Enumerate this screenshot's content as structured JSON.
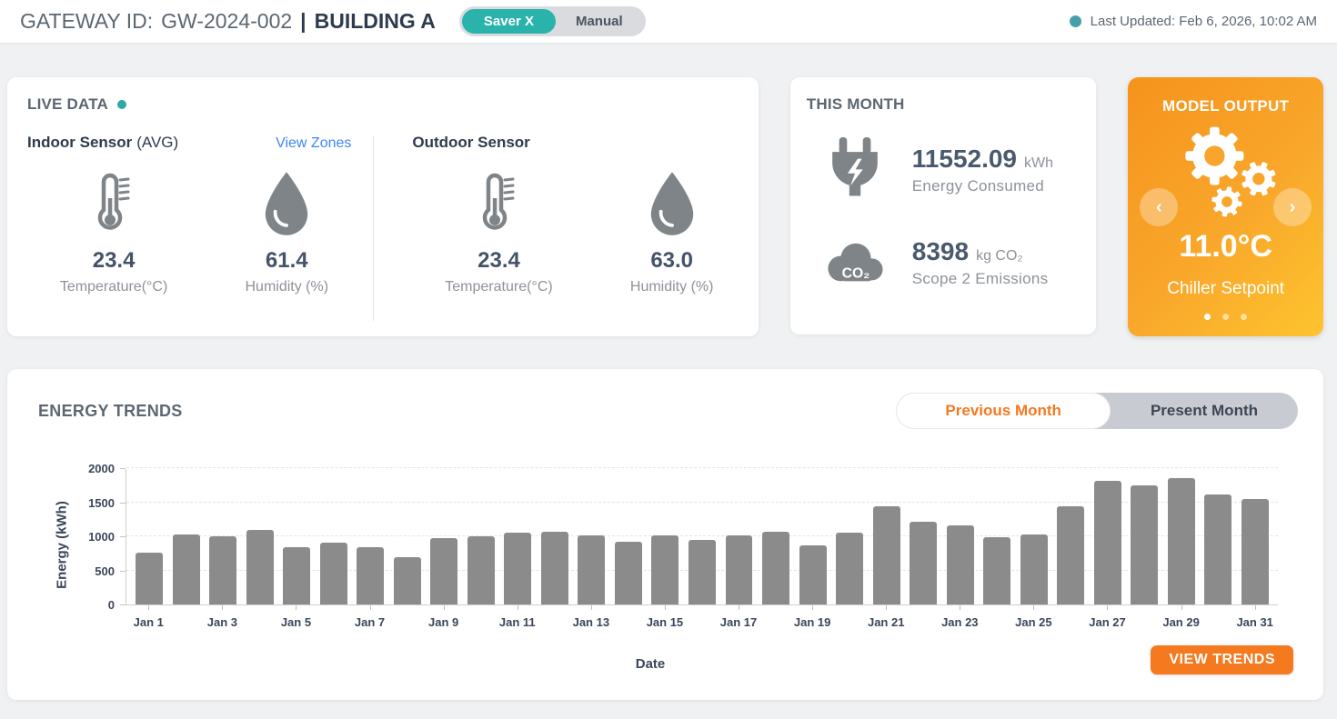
{
  "header": {
    "title_prefix": "GATEWAY ID:",
    "gateway_id": "GW-2024-002",
    "separator": "|",
    "building": "BUILDING A",
    "mode_toggle": {
      "active": "Saver X",
      "inactive": "Manual"
    },
    "last_updated": "Last Updated: Feb 6, 2026, 10:02 AM"
  },
  "live_data": {
    "title": "LIVE DATA",
    "indoor": {
      "title": "Indoor Sensor",
      "subtitle": "(AVG)",
      "link": "View Zones",
      "temperature": {
        "value": "23.4",
        "label": "Temperature(°C)"
      },
      "humidity": {
        "value": "61.4",
        "label": "Humidity (%)"
      }
    },
    "outdoor": {
      "title": "Outdoor Sensor",
      "temperature": {
        "value": "23.4",
        "label": "Temperature(°C)"
      },
      "humidity": {
        "value": "63.0",
        "label": "Humidity (%)"
      }
    }
  },
  "this_month": {
    "title": "THIS MONTH",
    "energy": {
      "value": "11552.09",
      "unit": "kWh",
      "label": "Energy Consumed"
    },
    "emissions": {
      "value": "8398",
      "unit": "kg CO₂",
      "label": "Scope 2 Emissions"
    }
  },
  "model_output": {
    "title": "MODEL OUTPUT",
    "value": "11.0°C",
    "label": "Chiller Setpoint",
    "dots": 3,
    "active_dot": 0,
    "prev_arrow": "‹",
    "next_arrow": "›"
  },
  "energy_trends": {
    "title": "ENERGY TRENDS",
    "toggle": {
      "active": "Previous Month",
      "inactive": "Present Month"
    },
    "button": "VIEW TRENDS"
  },
  "chart_data": {
    "type": "bar",
    "title": "ENERGY TRENDS",
    "categories": [
      "Jan 1",
      "Jan 2",
      "Jan 3",
      "Jan 4",
      "Jan 5",
      "Jan 6",
      "Jan 7",
      "Jan 8",
      "Jan 9",
      "Jan 10",
      "Jan 11",
      "Jan 12",
      "Jan 13",
      "Jan 14",
      "Jan 15",
      "Jan 16",
      "Jan 17",
      "Jan 18",
      "Jan 19",
      "Jan 20",
      "Jan 21",
      "Jan 22",
      "Jan 23",
      "Jan 24",
      "Jan 25",
      "Jan 26",
      "Jan 27",
      "Jan 28",
      "Jan 29",
      "Jan 30",
      "Jan 31"
    ],
    "values": [
      760,
      1030,
      1005,
      1105,
      845,
      910,
      845,
      700,
      975,
      1005,
      1055,
      1070,
      1015,
      930,
      1015,
      950,
      1015,
      1070,
      870,
      1060,
      1445,
      1220,
      1165,
      995,
      1035,
      1455,
      1825,
      1765,
      1865,
      1625,
      1560
    ],
    "xlabel": "Date",
    "ylabel": "Energy (kWh)",
    "ylim": [
      0,
      2000
    ],
    "yticks": [
      0,
      500,
      1000,
      1500,
      2000
    ],
    "x_tick_step": 2,
    "grid": "dashed-horizontal",
    "legend": null,
    "bar_color": "#8b8b8b"
  },
  "colors": {
    "accent_teal": "#2ab3ab",
    "accent_orange": "#f4791f",
    "model_gradient_start": "#f6931d",
    "model_gradient_end": "#fdc42e",
    "icon_gray": "#7f8488",
    "bar_gray": "#8b8b8b",
    "link_blue": "#4286f5"
  }
}
